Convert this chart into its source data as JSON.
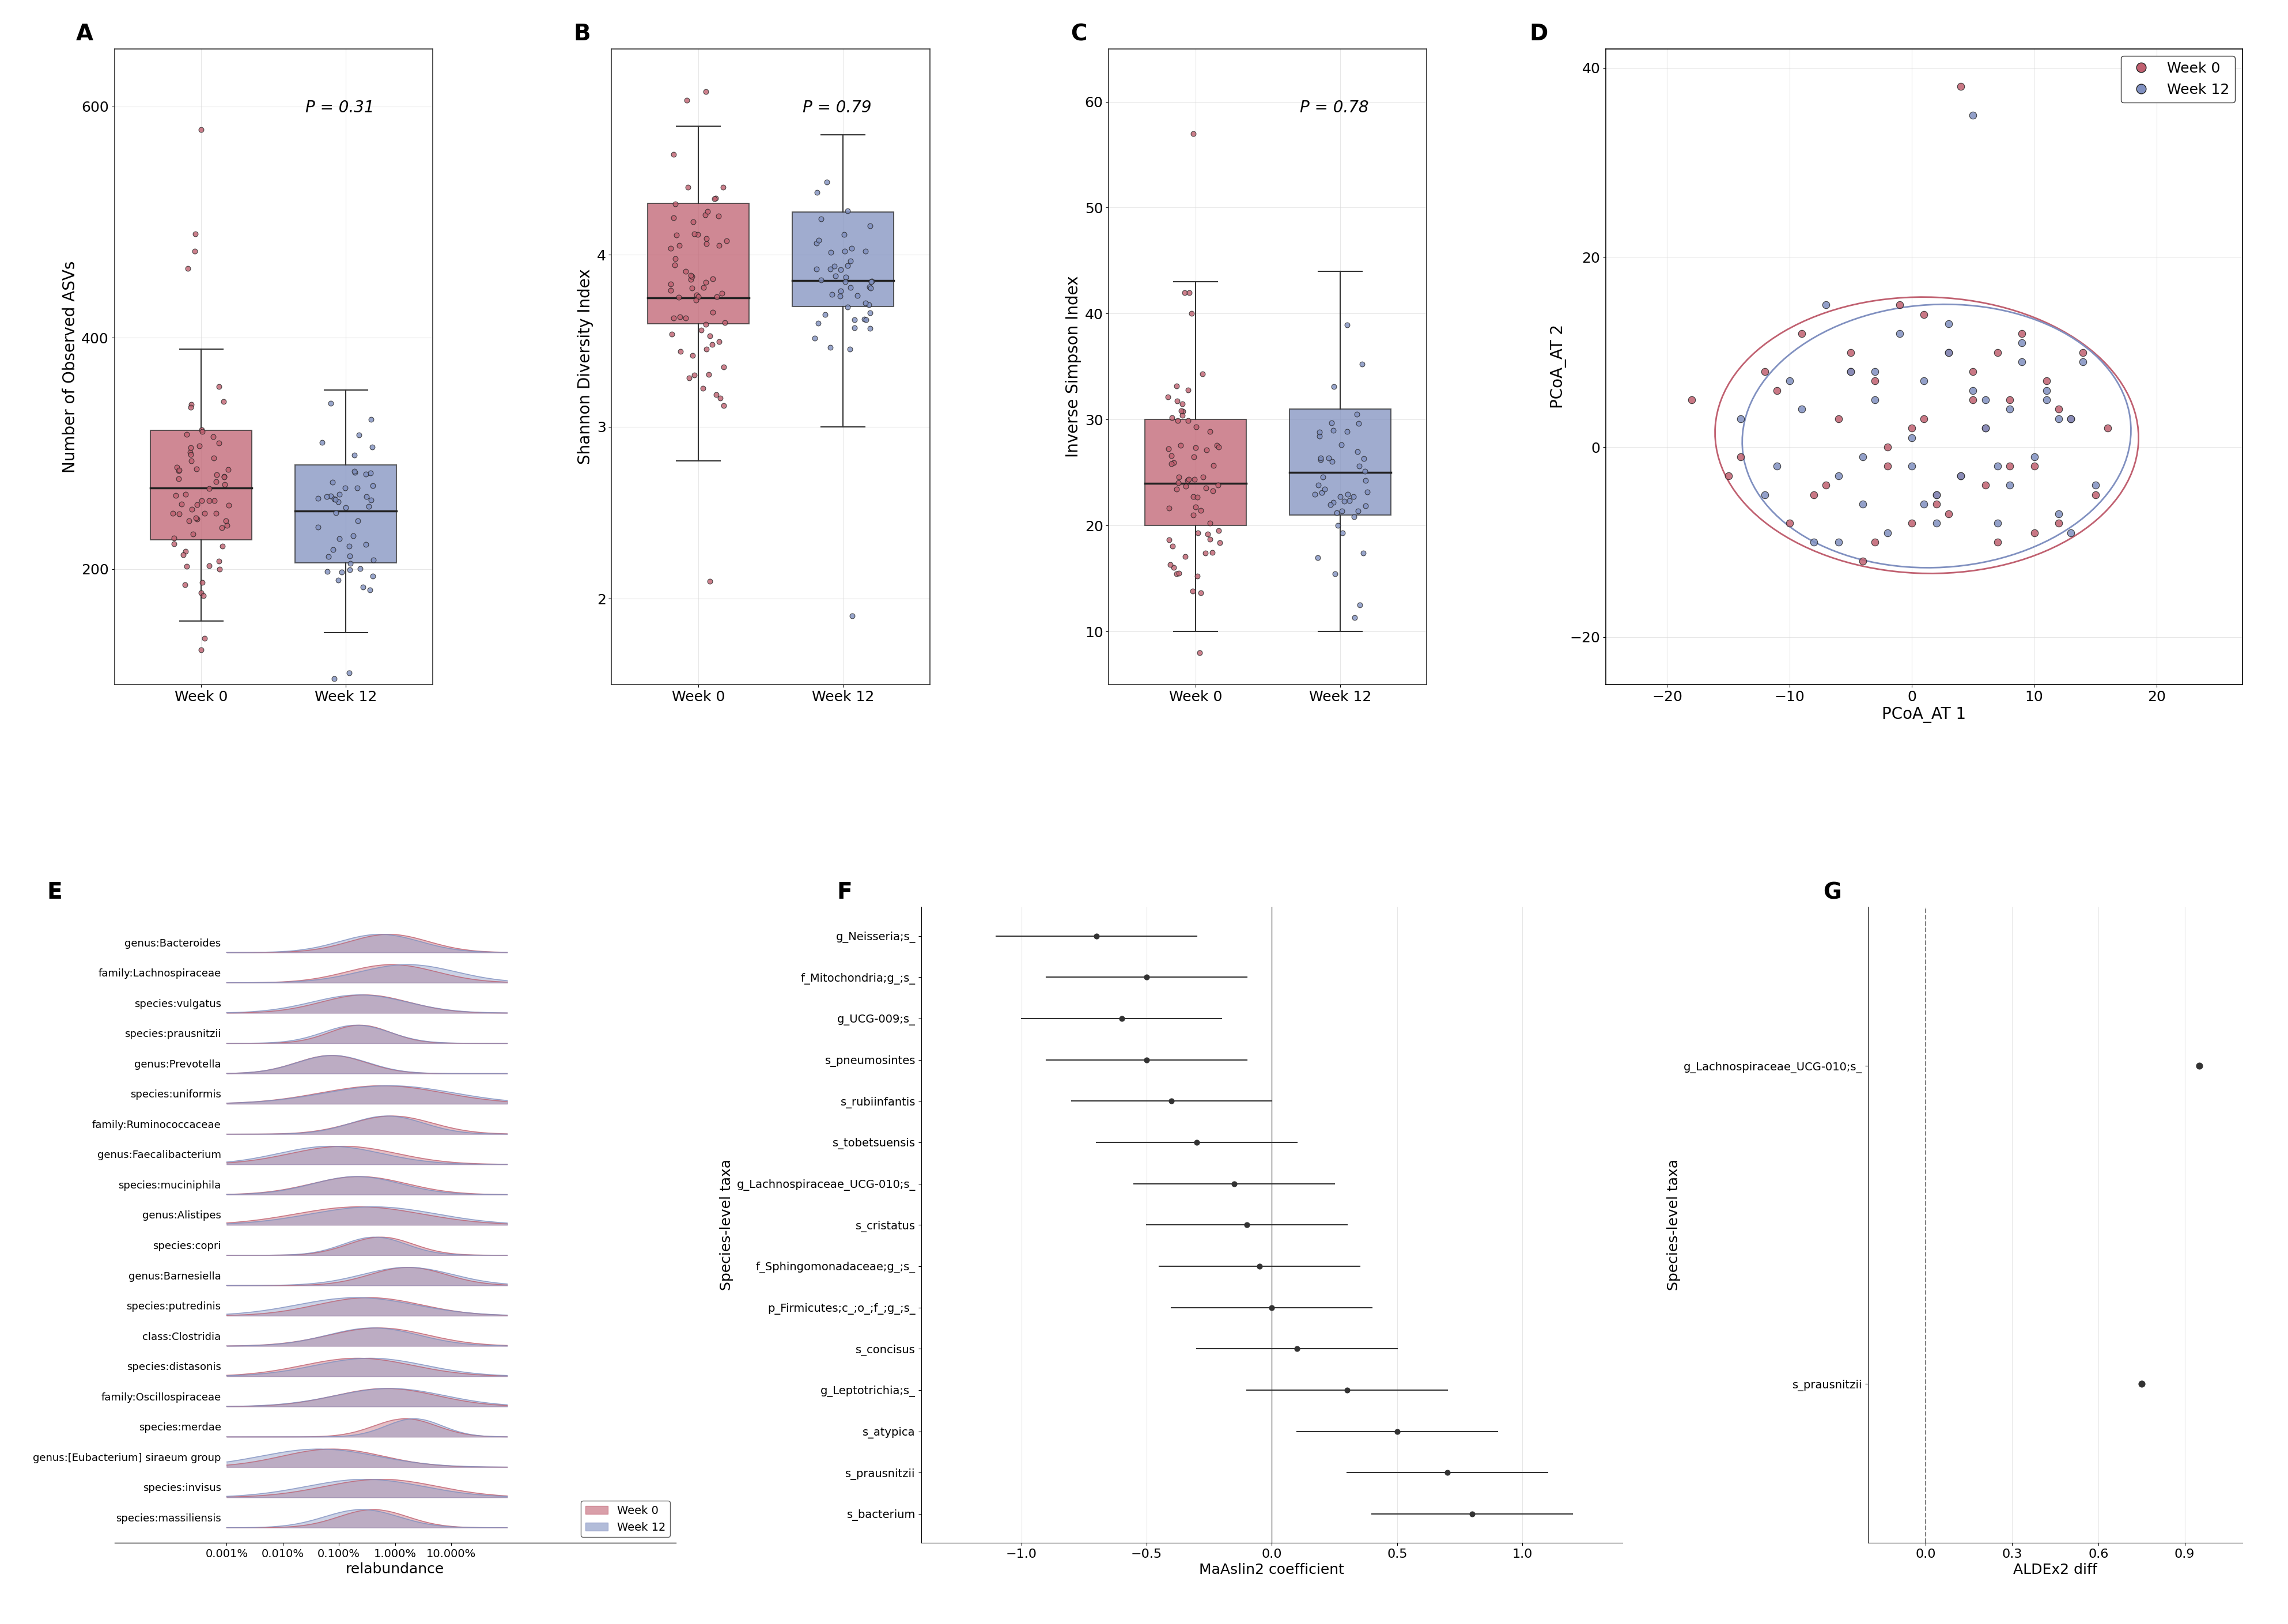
{
  "panel_labels": [
    "A",
    "B",
    "C",
    "D",
    "E",
    "F",
    "G"
  ],
  "week0_color": "#C06070",
  "week12_color": "#8090C0",
  "week0_color_fill": "#C87080",
  "week12_color_fill": "#8090C8",
  "background": "white",
  "grid_color": "#DDDDDD",
  "boxA": {
    "title": "P = 0.31",
    "ylabel": "Number of Observed ASVs",
    "ylim": [
      100,
      650
    ],
    "yticks": [
      200,
      400,
      600
    ],
    "week0": {
      "q1": 225,
      "median": 270,
      "q3": 320,
      "whisker_low": 155,
      "whisker_high": 390,
      "outliers": [
        580,
        490,
        475,
        460,
        140,
        130
      ]
    },
    "week12": {
      "q1": 205,
      "median": 250,
      "q3": 290,
      "whisker_low": 145,
      "whisker_high": 355,
      "outliers": [
        105,
        110
      ]
    }
  },
  "boxB": {
    "title": "P = 0.79",
    "ylabel": "Shannon Diversity Index",
    "ylim": [
      1.5,
      5.2
    ],
    "yticks": [
      2,
      3,
      4
    ],
    "week0": {
      "q1": 3.6,
      "median": 3.75,
      "q3": 4.3,
      "whisker_low": 2.8,
      "whisker_high": 4.75,
      "outliers": [
        4.95,
        4.9,
        2.1
      ]
    },
    "week12": {
      "q1": 3.7,
      "median": 3.85,
      "q3": 4.25,
      "whisker_low": 3.0,
      "whisker_high": 4.7,
      "outliers": [
        1.9
      ]
    }
  },
  "boxC": {
    "title": "P = 0.78",
    "ylabel": "Inverse Simpson Index",
    "ylim": [
      5,
      65
    ],
    "yticks": [
      10,
      20,
      30,
      40,
      50,
      60
    ],
    "week0": {
      "q1": 20,
      "median": 24,
      "q3": 30,
      "whisker_low": 10,
      "whisker_high": 43,
      "outliers": [
        57,
        42,
        42,
        40,
        8
      ]
    },
    "week12": {
      "q1": 21,
      "median": 25,
      "q3": 31,
      "whisker_low": 10,
      "whisker_high": 44,
      "outliers": []
    }
  },
  "panelD": {
    "xlabel": "PCoA_AT 1",
    "ylabel": "PCoA_AT 2",
    "xlim": [
      -25,
      27
    ],
    "ylim": [
      -25,
      42
    ],
    "xticks": [
      -20,
      -10,
      0,
      10,
      20
    ],
    "yticks": [
      -20,
      0,
      20,
      40
    ],
    "week0_pts_x": [
      -18,
      -15,
      -12,
      -10,
      -9,
      -8,
      -6,
      -5,
      -4,
      -3,
      -2,
      -1,
      0,
      1,
      2,
      3,
      4,
      5,
      6,
      7,
      8,
      9,
      10,
      11,
      12,
      13,
      14,
      15,
      16,
      -14,
      -11,
      -7,
      0,
      3,
      5,
      7,
      -3,
      2,
      8,
      12,
      -5,
      1,
      6,
      10,
      -2,
      4
    ],
    "week0_pts_y": [
      5,
      -3,
      8,
      -8,
      12,
      -5,
      3,
      10,
      -12,
      7,
      -2,
      15,
      -8,
      3,
      -5,
      10,
      -3,
      8,
      2,
      -10,
      5,
      12,
      -2,
      7,
      -8,
      3,
      10,
      -5,
      2,
      -1,
      6,
      -4,
      2,
      -7,
      5,
      10,
      -10,
      -6,
      -2,
      4,
      8,
      14,
      -4,
      -9,
      0,
      38
    ],
    "week12_pts_x": [
      -14,
      -12,
      -10,
      -8,
      -7,
      -6,
      -5,
      -4,
      -3,
      -2,
      -1,
      0,
      1,
      2,
      3,
      4,
      5,
      6,
      7,
      8,
      9,
      10,
      11,
      12,
      13,
      14,
      15,
      -11,
      -9,
      -4,
      2,
      6,
      9,
      12,
      -6,
      1,
      7,
      11,
      -3,
      3,
      8,
      13,
      0,
      5
    ],
    "week12_pts_y": [
      3,
      -5,
      7,
      -10,
      15,
      -3,
      8,
      -6,
      5,
      -9,
      12,
      -2,
      7,
      -5,
      10,
      -3,
      6,
      2,
      -8,
      4,
      11,
      -1,
      6,
      -7,
      3,
      9,
      -4,
      -2,
      4,
      -1,
      -8,
      5,
      9,
      3,
      -10,
      -6,
      -2,
      5,
      8,
      13,
      -4,
      -9,
      1,
      35
    ]
  },
  "panelE": {
    "taxa": [
      "genus:Bacteroides",
      "family:Lachnospiraceae",
      "species:vulgatus",
      "species:prausnitzii",
      "genus:Prevotella",
      "species:uniformis",
      "family:Ruminococcaceae",
      "genus:Faecalibacterium",
      "species:muciniphila",
      "genus:Alistipes",
      "species:copri",
      "genus:Barnesiella",
      "species:putredinis",
      "class:Clostridia",
      "species:distasonis",
      "family:Oscillospiraceae",
      "species:merdae",
      "genus:[Eubacterium] siraeum group",
      "species:invisus",
      "species:massiliensis"
    ],
    "xlabel": "relabundance",
    "xticks": [
      "0.001%",
      "0.010%",
      "0.100%",
      "1.000%",
      "10.000%"
    ]
  },
  "panelF": {
    "taxa": [
      "g_Neisseria;s_",
      "f_Mitochondria;g_;s_",
      "g_UCG-009;s_",
      "s_pneumosintes",
      "s_rubiinfantis",
      "s_tobetsuensis",
      "g_Lachnospiraceae_UCG-010;s_",
      "s_cristatus",
      "f_Sphingomonadaceae;g_;s_",
      "p_Firmicutes;c_;o_;f_;g_;s_",
      "s_concisus",
      "g_Leptotrichia;s_",
      "s_atypica",
      "s_prausnitzii",
      "s_bacterium"
    ],
    "coeff": [
      -0.7,
      -0.5,
      -0.6,
      -0.5,
      -0.4,
      -0.3,
      -0.15,
      -0.1,
      -0.05,
      0.0,
      0.1,
      0.3,
      0.5,
      0.7,
      0.8
    ],
    "ci_low": [
      -1.1,
      -0.9,
      -1.0,
      -0.9,
      -0.8,
      -0.7,
      -0.55,
      -0.5,
      -0.45,
      -0.4,
      -0.3,
      -0.1,
      0.1,
      0.3,
      0.4
    ],
    "ci_high": [
      -0.3,
      -0.1,
      -0.2,
      -0.1,
      0.0,
      0.1,
      0.25,
      0.3,
      0.35,
      0.4,
      0.5,
      0.7,
      0.9,
      1.1,
      1.2
    ],
    "xlabel": "MaAslin2 coefficient",
    "ylabel": "Species-level taxa",
    "xlim": [
      -1.4,
      1.4
    ]
  },
  "panelG": {
    "taxa": [
      "g_Lachnospiraceae_UCG-010;s_",
      "s_prausnitzii"
    ],
    "values": [
      0.95,
      0.75
    ],
    "xlabel": "ALDEx2 diff",
    "ylabel": "Species-level taxa",
    "xlim": [
      -0.2,
      1.1
    ],
    "xticks": [
      0.0,
      0.3,
      0.6,
      0.9
    ]
  }
}
